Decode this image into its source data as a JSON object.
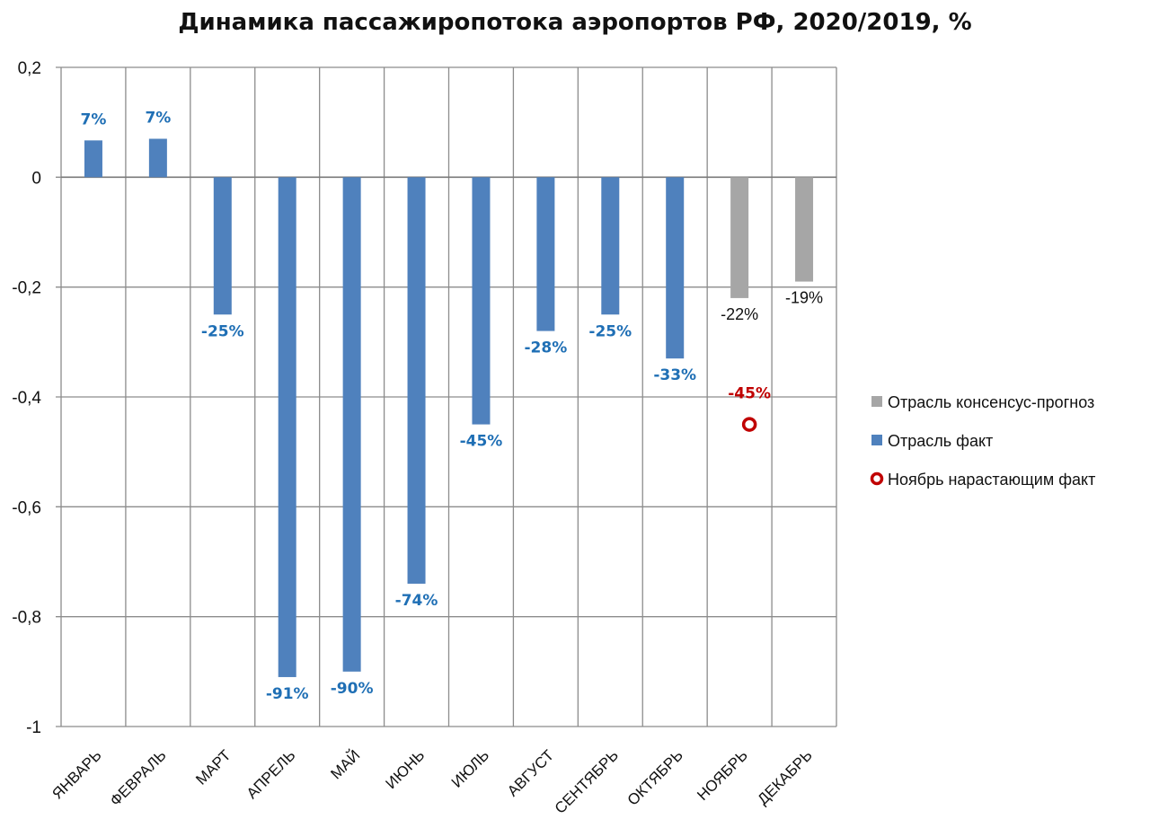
{
  "chart_data": {
    "type": "bar",
    "title": "Динамика пассажиропотока аэропортов РФ, 2020/2019, %",
    "xlabel": "",
    "ylabel": "",
    "ylim": [
      -1,
      0.2
    ],
    "yticks": [
      0.2,
      0,
      -0.2,
      -0.4,
      -0.6,
      -0.8,
      -1
    ],
    "ytick_labels": [
      "0,2",
      "0",
      "-0,2",
      "-0,4",
      "-0,6",
      "-0,8",
      "-1"
    ],
    "grid": true,
    "legend_position": "right",
    "categories": [
      "ЯНВАРЬ",
      "ФЕВРАЛЬ",
      "МАРТ",
      "АПРЕЛЬ",
      "МАЙ",
      "ИЮНЬ",
      "ИЮЛЬ",
      "АВГУСТ",
      "СЕНТЯБРЬ",
      "ОКТЯБРЬ",
      "НОЯБРЬ",
      "ДЕКАБРЬ"
    ],
    "series": [
      {
        "name": "Отрасль консенсус-прогноз",
        "kind": "bar",
        "color": "#a6a6a6",
        "label_color": "#111111",
        "values": [
          null,
          null,
          null,
          null,
          null,
          null,
          null,
          null,
          null,
          null,
          -0.22,
          -0.19
        ],
        "labels": [
          null,
          null,
          null,
          null,
          null,
          null,
          null,
          null,
          null,
          null,
          "-22%",
          "-19%"
        ]
      },
      {
        "name": "Отрасль факт",
        "kind": "bar",
        "color": "#4f81bd",
        "label_color": "#1f6fb5",
        "values": [
          0.067,
          0.07,
          -0.25,
          -0.91,
          -0.9,
          -0.74,
          -0.45,
          -0.28,
          -0.25,
          -0.33,
          null,
          null
        ],
        "labels": [
          "7%",
          "7%",
          "-25%",
          "-91%",
          "-90%",
          "-74%",
          "-45%",
          "-28%",
          "-25%",
          "-33%",
          null,
          null
        ]
      },
      {
        "name": "Ноябрь нарастающим факт",
        "kind": "marker",
        "color": "#c00000",
        "label_color": "#c00000",
        "values": [
          null,
          null,
          null,
          null,
          null,
          null,
          null,
          null,
          null,
          null,
          -0.45,
          null
        ],
        "labels": [
          null,
          null,
          null,
          null,
          null,
          null,
          null,
          null,
          null,
          null,
          "-45%",
          null
        ]
      }
    ],
    "legend": [
      "Отрасль консенсус-прогноз",
      "Отрасль факт",
      "Ноябрь нарастающим факт"
    ]
  }
}
